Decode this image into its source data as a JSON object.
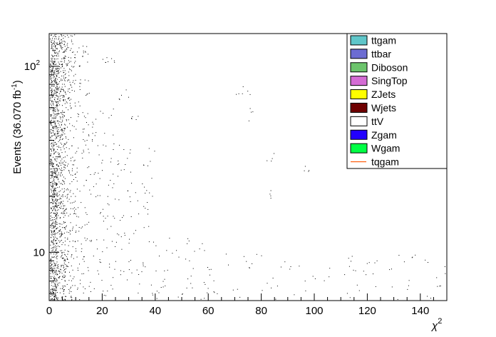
{
  "chart_data": {
    "type": "scatter",
    "title": "",
    "xlabel": "χ",
    "xlabel_superscript": "2",
    "ylabel": "Events (36.070 fb",
    "ylabel_superscript": "-1",
    "ylabel_close": ")",
    "xlim": [
      0,
      150
    ],
    "ylim": [
      5.5,
      150
    ],
    "yscale": "log",
    "xticks": [
      0,
      20,
      40,
      60,
      80,
      100,
      120,
      140
    ],
    "yticks_labeled": [
      {
        "value": 10,
        "label": "10"
      },
      {
        "value": 100,
        "label": "10",
        "sup": "2"
      }
    ],
    "grid": false,
    "legend_position": "top-right",
    "legend": [
      {
        "name": "ttgam",
        "color": "#5fc6c9",
        "kind": "box"
      },
      {
        "name": "ttbar",
        "color": "#6c6cd2",
        "kind": "box"
      },
      {
        "name": "Diboson",
        "color": "#6cc46c",
        "kind": "box"
      },
      {
        "name": "SingTop",
        "color": "#d46cd4",
        "kind": "box"
      },
      {
        "name": "ZJets",
        "color": "#ffff00",
        "kind": "box"
      },
      {
        "name": "Wjets",
        "color": "#6e0000",
        "kind": "box"
      },
      {
        "name": "ttV",
        "color": "#ffffff",
        "kind": "box"
      },
      {
        "name": "Zgam",
        "color": "#2200ff",
        "kind": "box"
      },
      {
        "name": "Wgam",
        "color": "#00ff44",
        "kind": "box"
      },
      {
        "name": "tqgam",
        "color": "#ff5500",
        "kind": "line"
      }
    ],
    "scatter_clusters": [
      {
        "x": [
          0,
          3
        ],
        "y": [
          5.5,
          150
        ],
        "density": 950
      },
      {
        "x": [
          3,
          6
        ],
        "y": [
          5.5,
          150
        ],
        "density": 480
      },
      {
        "x": [
          6,
          10
        ],
        "y": [
          5.5,
          150
        ],
        "density": 220
      },
      {
        "x": [
          10,
          15
        ],
        "y": [
          5.5,
          130
        ],
        "density": 110
      },
      {
        "x": [
          15,
          25
        ],
        "y": [
          5.5,
          60
        ],
        "density": 90
      },
      {
        "x": [
          25,
          40
        ],
        "y": [
          5.5,
          40
        ],
        "density": 70
      },
      {
        "x": [
          40,
          60
        ],
        "y": [
          5.5,
          12
        ],
        "density": 45
      },
      {
        "x": [
          60,
          150
        ],
        "y": [
          5.5,
          10
        ],
        "density": 80
      },
      {
        "x": [
          20,
          25
        ],
        "y": [
          105,
          115
        ],
        "density": 8
      },
      {
        "x": [
          26,
          30
        ],
        "y": [
          65,
          75
        ],
        "density": 5
      },
      {
        "x": [
          30,
          34
        ],
        "y": [
          50,
          56
        ],
        "density": 5
      },
      {
        "x": [
          70,
          76
        ],
        "y": [
          70,
          78
        ],
        "density": 6
      },
      {
        "x": [
          75,
          77
        ],
        "y": [
          50,
          60
        ],
        "density": 4
      },
      {
        "x": [
          82,
          85
        ],
        "y": [
          30,
          36
        ],
        "density": 4
      },
      {
        "x": [
          96,
          98
        ],
        "y": [
          25,
          31
        ],
        "density": 4
      },
      {
        "x": [
          82,
          84
        ],
        "y": [
          19,
          24
        ],
        "density": 4
      },
      {
        "x": [
          35,
          38
        ],
        "y": [
          12,
          33
        ],
        "density": 10
      }
    ]
  }
}
